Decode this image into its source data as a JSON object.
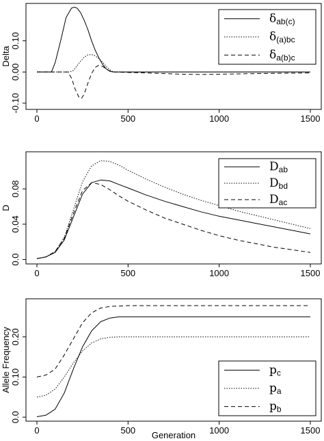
{
  "chart_data": [
    {
      "type": "line",
      "title": "",
      "xlabel": "",
      "ylabel": "Delta",
      "xlim": [
        -60,
        1560
      ],
      "ylim": [
        -0.12,
        0.22
      ],
      "xticks": [
        "0",
        "500",
        "1000",
        "1500"
      ],
      "xtick_values": [
        0,
        500,
        1000,
        1500
      ],
      "yticks": [
        "-0.10",
        "0.00",
        "0.10"
      ],
      "ytick_values": [
        -0.1,
        0.0,
        0.1
      ],
      "legend_position": "top-right",
      "series": [
        {
          "symbol": "δ",
          "subscript": "ab(c)",
          "dash": "",
          "x": [
            0,
            50,
            80,
            100,
            130,
            160,
            190,
            205,
            220,
            240,
            260,
            280,
            300,
            320,
            340,
            360,
            380,
            400,
            420,
            500,
            1000,
            1500
          ],
          "y": [
            0,
            0,
            0,
            0.03,
            0.1,
            0.175,
            0.205,
            0.208,
            0.205,
            0.19,
            0.165,
            0.135,
            0.1,
            0.07,
            0.045,
            0.025,
            0.01,
            0.002,
            0,
            0,
            0,
            0
          ]
        },
        {
          "symbol": "δ",
          "subscript": "(a)bc",
          "dash": "1.5,2",
          "x": [
            0,
            150,
            180,
            200,
            220,
            240,
            260,
            280,
            300,
            320,
            340,
            360,
            380,
            400,
            420,
            500,
            1000,
            1500
          ],
          "y": [
            0,
            0,
            0,
            0.005,
            0.02,
            0.035,
            0.048,
            0.055,
            0.056,
            0.052,
            0.043,
            0.032,
            0.018,
            0.007,
            0,
            0,
            0,
            0
          ]
        },
        {
          "symbol": "δ",
          "subscript": "a(b)c",
          "dash": "6,4",
          "x": [
            0,
            140,
            170,
            190,
            210,
            230,
            245,
            260,
            280,
            300,
            320,
            340,
            360,
            380,
            400,
            420,
            600,
            800,
            900,
            1000,
            1200,
            1500
          ],
          "y": [
            0,
            0,
            0,
            -0.02,
            -0.055,
            -0.08,
            -0.085,
            -0.07,
            -0.035,
            -0.005,
            0.015,
            0.022,
            0.018,
            0.01,
            0.003,
            0,
            -0.003,
            -0.007,
            -0.008,
            -0.007,
            -0.005,
            -0.003
          ]
        }
      ]
    },
    {
      "type": "line",
      "title": "",
      "xlabel": "",
      "ylabel": "D",
      "xlim": [
        -60,
        1560
      ],
      "ylim": [
        -0.005,
        0.122
      ],
      "xticks": [
        "0",
        "500",
        "1000",
        "1500"
      ],
      "xtick_values": [
        0,
        500,
        1000,
        1500
      ],
      "yticks": [
        "0.0",
        "0.04",
        "0.08"
      ],
      "ytick_values": [
        0.0,
        0.04,
        0.08
      ],
      "legend_position": "top-right",
      "series": [
        {
          "symbol": "D",
          "subscript": "ab",
          "dash": "",
          "x": [
            0,
            50,
            100,
            150,
            200,
            250,
            300,
            350,
            400,
            450,
            500,
            600,
            700,
            800,
            900,
            1000,
            1100,
            1200,
            1300,
            1400,
            1500
          ],
          "y": [
            0.001,
            0.003,
            0.008,
            0.022,
            0.048,
            0.074,
            0.087,
            0.09,
            0.089,
            0.085,
            0.081,
            0.073,
            0.066,
            0.06,
            0.054,
            0.049,
            0.045,
            0.041,
            0.037,
            0.033,
            0.029
          ]
        },
        {
          "symbol": "D",
          "subscript": "bd",
          "dash": "1.5,2",
          "x": [
            0,
            50,
            100,
            150,
            200,
            250,
            300,
            350,
            400,
            450,
            500,
            600,
            700,
            800,
            900,
            1000,
            1100,
            1200,
            1300,
            1400,
            1500
          ],
          "y": [
            0.001,
            0.003,
            0.009,
            0.025,
            0.056,
            0.088,
            0.106,
            0.112,
            0.111,
            0.107,
            0.101,
            0.091,
            0.082,
            0.074,
            0.067,
            0.061,
            0.055,
            0.05,
            0.045,
            0.04,
            0.035
          ]
        },
        {
          "symbol": "D",
          "subscript": "ac",
          "dash": "6,4",
          "x": [
            0,
            50,
            100,
            150,
            200,
            250,
            300,
            350,
            400,
            450,
            500,
            600,
            700,
            800,
            900,
            1000,
            1100,
            1200,
            1300,
            1400,
            1500
          ],
          "y": [
            0.001,
            0.003,
            0.009,
            0.024,
            0.052,
            0.078,
            0.087,
            0.085,
            0.079,
            0.072,
            0.066,
            0.056,
            0.047,
            0.04,
            0.033,
            0.027,
            0.022,
            0.018,
            0.014,
            0.011,
            0.008
          ]
        }
      ]
    },
    {
      "type": "line",
      "title": "",
      "xlabel": "Generation",
      "ylabel": "Allele Frequency",
      "xlim": [
        -60,
        1560
      ],
      "ylim": [
        -0.01,
        0.295
      ],
      "xticks": [
        "0",
        "500",
        "1000",
        "1500"
      ],
      "xtick_values": [
        0,
        500,
        1000,
        1500
      ],
      "yticks": [
        "0.0",
        "0.10",
        "0.20"
      ],
      "ytick_values": [
        0.0,
        0.1,
        0.2
      ],
      "legend_position": "bottom-right",
      "series": [
        {
          "symbol": "p",
          "subscript": "c",
          "dash": "",
          "x": [
            0,
            50,
            100,
            150,
            200,
            250,
            300,
            350,
            400,
            450,
            500,
            600,
            800,
            1000,
            1200,
            1500
          ],
          "y": [
            0.001,
            0.005,
            0.02,
            0.06,
            0.12,
            0.175,
            0.215,
            0.238,
            0.247,
            0.25,
            0.25,
            0.25,
            0.25,
            0.25,
            0.25,
            0.25
          ]
        },
        {
          "symbol": "p",
          "subscript": "a",
          "dash": "1.5,2",
          "x": [
            0,
            50,
            100,
            150,
            200,
            250,
            300,
            350,
            400,
            450,
            500,
            600,
            800,
            1000,
            1200,
            1500
          ],
          "y": [
            0.05,
            0.055,
            0.07,
            0.1,
            0.135,
            0.165,
            0.185,
            0.195,
            0.199,
            0.2,
            0.2,
            0.2,
            0.2,
            0.2,
            0.2,
            0.2
          ]
        },
        {
          "symbol": "p",
          "subscript": "b",
          "dash": "6,4",
          "x": [
            0,
            50,
            100,
            150,
            200,
            250,
            300,
            350,
            400,
            450,
            500,
            600,
            800,
            1000,
            1200,
            1500
          ],
          "y": [
            0.1,
            0.105,
            0.12,
            0.155,
            0.195,
            0.235,
            0.26,
            0.272,
            0.276,
            0.277,
            0.278,
            0.278,
            0.278,
            0.278,
            0.278,
            0.278
          ]
        }
      ]
    }
  ]
}
